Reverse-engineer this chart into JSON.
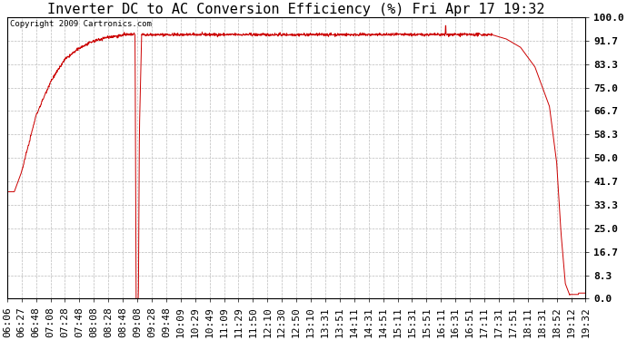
{
  "title": "Inverter DC to AC Conversion Efficiency (%) Fri Apr 17 19:32",
  "copyright": "Copyright 2009 Cartronics.com",
  "line_color": "#cc0000",
  "background_color": "#ffffff",
  "plot_bg_color": "#ffffff",
  "grid_color": "#bbbbbb",
  "ylim": [
    0.0,
    100.0
  ],
  "yticks": [
    0.0,
    8.3,
    16.7,
    25.0,
    33.3,
    41.7,
    50.0,
    58.3,
    66.7,
    75.0,
    83.3,
    91.7,
    100.0
  ],
  "xtick_labels": [
    "06:06",
    "06:27",
    "06:48",
    "07:08",
    "07:28",
    "07:48",
    "08:08",
    "08:28",
    "08:48",
    "09:08",
    "09:28",
    "09:48",
    "10:09",
    "10:29",
    "10:49",
    "11:09",
    "11:29",
    "11:50",
    "12:10",
    "12:30",
    "12:50",
    "13:10",
    "13:31",
    "13:51",
    "14:11",
    "14:31",
    "14:51",
    "15:11",
    "15:31",
    "15:51",
    "16:11",
    "16:31",
    "16:51",
    "17:11",
    "17:31",
    "17:51",
    "18:11",
    "18:31",
    "18:52",
    "19:12",
    "19:32"
  ],
  "title_fontsize": 11,
  "copyright_fontsize": 6.5,
  "tick_fontsize": 8,
  "ytick_fontsize": 8
}
